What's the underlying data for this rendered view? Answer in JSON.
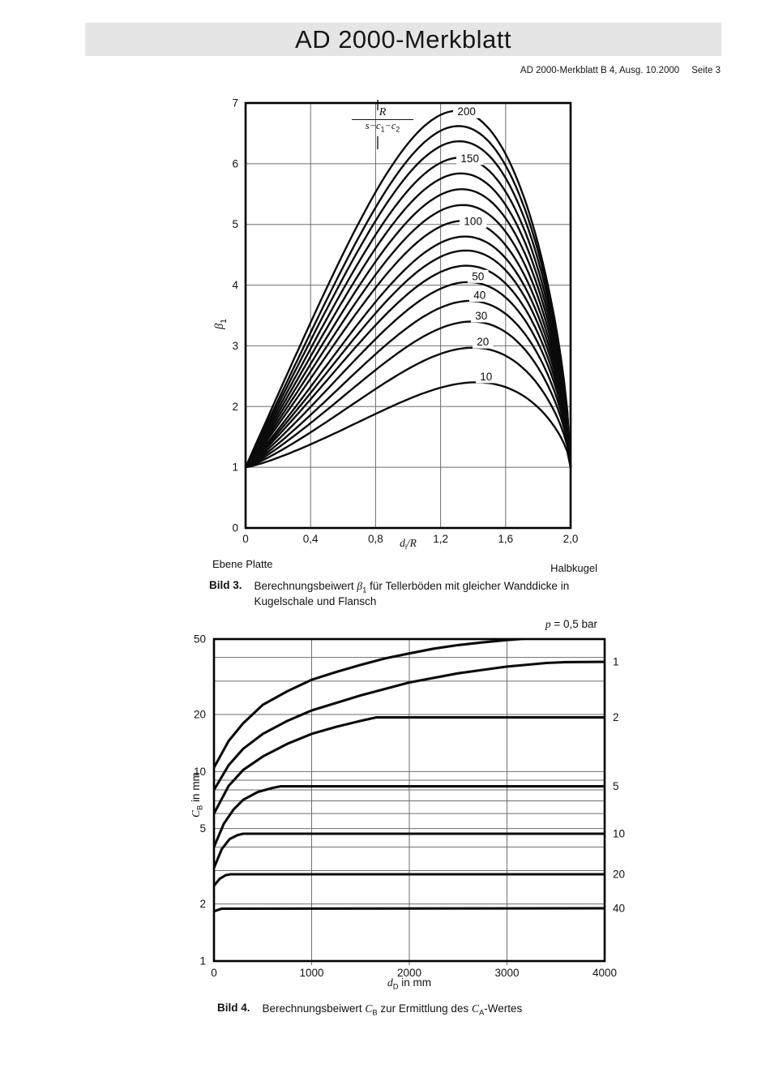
{
  "header": {
    "title": "AD 2000-Merkblatt",
    "reference": "AD 2000-Merkblatt B 4, Ausg. 10.2000",
    "page": "Seite 3"
  },
  "figure3": {
    "label": "Bild 3.",
    "caption_pre": "Berechnungsbeiwert ",
    "caption_sym": "β",
    "caption_sub": "1",
    "caption_rest": " für Tellerböden mit gleicher Wanddicke in",
    "caption_line2": "Kugelschale und Flansch",
    "annotation_left": "Ebene Platte",
    "annotation_right": "Halbkugel",
    "legend_numerator": "R",
    "legend_den_1": "s−c",
    "legend_den_sub1": "1",
    "legend_den_2": "−c",
    "legend_den_sub2": "2",
    "ylabel_sym": "β",
    "ylabel_sub": "1",
    "xlabel_sym": "d",
    "xlabel_sub": "i",
    "xlabel_rest": "/R"
  },
  "figure4": {
    "label": "Bild 4.",
    "caption_pre": "Berechnungsbeiwert ",
    "caption_c1": "C",
    "caption_c1_sub": "B",
    "caption_mid": " zur Ermittlung des ",
    "caption_c2": "C",
    "caption_c2_sub": "A",
    "caption_post": "-Wertes",
    "annotation_sym": "p",
    "annotation_rest": " = 0,5 bar",
    "ylabel_sym": "C",
    "ylabel_sub": "B",
    "ylabel_rest": " in mm",
    "xlabel_sym": "d",
    "xlabel_sub": "D",
    "xlabel_rest": " in mm"
  },
  "chart_data": [
    {
      "type": "line",
      "title": "Berechnungsbeiwert β1 für Tellerböden mit gleicher Wanddicke in Kugelschale und Flansch",
      "xlabel": "di/R",
      "ylabel": "β1",
      "legend": "R/(s−c1−c2)",
      "xlim": [
        0,
        2.0
      ],
      "ylim": [
        0,
        7
      ],
      "grid": true,
      "xticks": [
        {
          "label": "0",
          "value": 0
        },
        {
          "label": "0,4",
          "value": 0.4
        },
        {
          "label": "0,8",
          "value": 0.8
        },
        {
          "label": "1,2",
          "value": 1.2
        },
        {
          "label": "1,6",
          "value": 1.6
        },
        {
          "label": "2,0",
          "value": 2.0
        }
      ],
      "yticks": [
        {
          "label": "0",
          "value": 0
        },
        {
          "label": "1",
          "value": 1
        },
        {
          "label": "2",
          "value": 2
        },
        {
          "label": "3",
          "value": 3
        },
        {
          "label": "4",
          "value": 4
        },
        {
          "label": "5",
          "value": 5
        },
        {
          "label": "6",
          "value": 6
        },
        {
          "label": "7",
          "value": 7
        }
      ],
      "curves_start": [
        0,
        1
      ],
      "curves_end": [
        2.0,
        1
      ],
      "series": [
        {
          "param": 10,
          "label": "10",
          "labeled": true,
          "peak": 2.4,
          "peak_x": 1.42
        },
        {
          "param": 20,
          "label": "20",
          "labeled": true,
          "peak": 2.97,
          "peak_x": 1.4
        },
        {
          "param": 30,
          "label": "30",
          "labeled": true,
          "peak": 3.4,
          "peak_x": 1.39
        },
        {
          "param": 40,
          "label": "40",
          "labeled": true,
          "peak": 3.74,
          "peak_x": 1.38
        },
        {
          "param": 50,
          "label": "50",
          "labeled": true,
          "peak": 4.05,
          "peak_x": 1.37
        },
        {
          "param": 60,
          "label": "",
          "labeled": false,
          "peak": 4.32,
          "peak_x": 1.36
        },
        {
          "param": 70,
          "label": "",
          "labeled": false,
          "peak": 4.57,
          "peak_x": 1.355
        },
        {
          "param": 80,
          "label": "",
          "labeled": false,
          "peak": 4.8,
          "peak_x": 1.35
        },
        {
          "param": 100,
          "label": "100",
          "labeled": true,
          "peak": 5.06,
          "peak_x": 1.34
        },
        {
          "param": 110,
          "label": "",
          "labeled": false,
          "peak": 5.32,
          "peak_x": 1.335
        },
        {
          "param": 125,
          "label": "",
          "labeled": false,
          "peak": 5.58,
          "peak_x": 1.33
        },
        {
          "param": 135,
          "label": "",
          "labeled": false,
          "peak": 5.84,
          "peak_x": 1.325
        },
        {
          "param": 150,
          "label": "150",
          "labeled": true,
          "peak": 6.1,
          "peak_x": 1.32
        },
        {
          "param": 165,
          "label": "",
          "labeled": false,
          "peak": 6.37,
          "peak_x": 1.315
        },
        {
          "param": 180,
          "label": "",
          "labeled": false,
          "peak": 6.62,
          "peak_x": 1.31
        },
        {
          "param": 200,
          "label": "200",
          "labeled": true,
          "peak": 6.87,
          "peak_x": 1.3
        }
      ]
    },
    {
      "type": "line",
      "title": "Berechnungsbeiwert CB zur Ermittlung des CA-Wertes",
      "xlabel": "dD in mm",
      "ylabel": "CB in mm",
      "xlim": [
        0,
        4000
      ],
      "ylim": [
        1,
        50
      ],
      "yscale": "log",
      "annotation": "p = 0,5 bar",
      "xticks": [
        {
          "label": "0",
          "value": 0
        },
        {
          "label": "1000",
          "value": 1000
        },
        {
          "label": "2000",
          "value": 2000
        },
        {
          "label": "3000",
          "value": 3000
        },
        {
          "label": "4000",
          "value": 4000
        }
      ],
      "yticks": [
        {
          "label": "1",
          "value": 1
        },
        {
          "label": "2",
          "value": 2
        },
        {
          "label": "5",
          "value": 5
        },
        {
          "label": "10",
          "value": 10
        },
        {
          "label": "20",
          "value": 20
        },
        {
          "label": "50",
          "value": 50
        }
      ],
      "gridlines_x": [
        1000,
        2000,
        3000
      ],
      "gridlines_y": [
        2,
        3,
        4,
        5,
        6,
        7,
        8,
        9,
        10,
        20,
        30,
        40
      ],
      "series": [
        {
          "pressure_bar": 0.5,
          "label": "p = 0,5 bar",
          "label_position": "top",
          "points": [
            [
              0,
              10.5
            ],
            [
              150,
              14.5
            ],
            [
              300,
              18
            ],
            [
              500,
              22.5
            ],
            [
              750,
              26.5
            ],
            [
              1000,
              30.5
            ],
            [
              1250,
              33.5
            ],
            [
              1500,
              36.5
            ],
            [
              1750,
              39.5
            ],
            [
              2000,
              42
            ],
            [
              2250,
              44.5
            ],
            [
              2500,
              46.5
            ],
            [
              2750,
              48
            ],
            [
              3000,
              49.4
            ],
            [
              3300,
              50.8
            ]
          ]
        },
        {
          "pressure_bar": 1,
          "label": "1",
          "label_position": "right",
          "points": [
            [
              0,
              8
            ],
            [
              150,
              10.8
            ],
            [
              300,
              13.2
            ],
            [
              500,
              15.8
            ],
            [
              750,
              18.5
            ],
            [
              1000,
              21
            ],
            [
              1500,
              25.2
            ],
            [
              2000,
              29.5
            ],
            [
              2500,
              33
            ],
            [
              3000,
              35.8
            ],
            [
              3400,
              37.4
            ],
            [
              3600,
              37.8
            ],
            [
              4000,
              37.9
            ]
          ]
        },
        {
          "pressure_bar": 2,
          "label": "2",
          "label_position": "right",
          "points": [
            [
              0,
              6
            ],
            [
              150,
              8.4
            ],
            [
              300,
              10.2
            ],
            [
              500,
              12
            ],
            [
              750,
              14
            ],
            [
              1000,
              15.8
            ],
            [
              1250,
              17.2
            ],
            [
              1500,
              18.5
            ],
            [
              1660,
              19.3
            ],
            [
              4000,
              19.3
            ]
          ]
        },
        {
          "pressure_bar": 5,
          "label": "5",
          "label_position": "right",
          "points": [
            [
              0,
              4
            ],
            [
              100,
              5.3
            ],
            [
              200,
              6.3
            ],
            [
              300,
              7.1
            ],
            [
              450,
              7.8
            ],
            [
              600,
              8.2
            ],
            [
              680,
              8.35
            ],
            [
              4000,
              8.35
            ]
          ]
        },
        {
          "pressure_bar": 10,
          "label": "10",
          "label_position": "right",
          "points": [
            [
              0,
              3.1
            ],
            [
              80,
              3.9
            ],
            [
              160,
              4.4
            ],
            [
              240,
              4.62
            ],
            [
              300,
              4.7
            ],
            [
              4000,
              4.7
            ]
          ]
        },
        {
          "pressure_bar": 20,
          "label": "20",
          "label_position": "right",
          "points": [
            [
              0,
              2.5
            ],
            [
              60,
              2.72
            ],
            [
              120,
              2.84
            ],
            [
              170,
              2.87
            ],
            [
              4000,
              2.87
            ]
          ]
        },
        {
          "pressure_bar": 40,
          "label": "40",
          "label_position": "right",
          "points": [
            [
              0,
              1.83
            ],
            [
              80,
              1.89
            ],
            [
              4000,
              1.9
            ]
          ]
        }
      ]
    }
  ]
}
